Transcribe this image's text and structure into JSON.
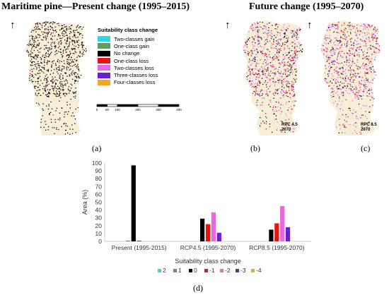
{
  "titles": {
    "present": "Maritime pine—Present change (1995–2015)",
    "future": "Future change (1995–2070)"
  },
  "panels": {
    "a": "(a)",
    "b": "(b)",
    "c": "(c)",
    "d": "(d)"
  },
  "north_arrow": "↑",
  "legend": {
    "title": "Suitability class change",
    "items": [
      {
        "label": "Two-classes gain",
        "color": "#33d6e6"
      },
      {
        "label": "One-class gain",
        "color": "#5aa05a"
      },
      {
        "label": "No change",
        "color": "#000000"
      },
      {
        "label": "One-class loss",
        "color": "#ee1111"
      },
      {
        "label": "Two-classes loss",
        "color": "#ee66dd"
      },
      {
        "label": "Three-classes loss",
        "color": "#6a1fd4"
      },
      {
        "label": "Four-classes loss",
        "color": "#f5a623"
      }
    ]
  },
  "scale_bar": {
    "ticks": [
      "0",
      "50",
      "100",
      "200",
      "300",
      "400"
    ]
  },
  "map_notes": {
    "b": {
      "line1": "RPC 4.5",
      "line2": "2070"
    },
    "c": {
      "line1": "RPC 8.5",
      "line2": "2070"
    }
  },
  "colors": {
    "land": "#f7eed8"
  },
  "chart_data": {
    "type": "bar",
    "categories": [
      "Present (1995-2015)",
      "RCP4.5 (1995-2070)",
      "RCP8.5 (1995-2070)"
    ],
    "series": [
      {
        "name": "2",
        "color": "#33d6e6",
        "values": [
          0,
          0,
          0
        ]
      },
      {
        "name": "1",
        "color": "#5aa05a",
        "values": [
          1,
          0,
          0
        ]
      },
      {
        "name": "0",
        "color": "#000000",
        "values": [
          97,
          29,
          15
        ]
      },
      {
        "name": "-1",
        "color": "#ee1111",
        "values": [
          1,
          22,
          23
        ]
      },
      {
        "name": "-2",
        "color": "#ee66dd",
        "values": [
          0,
          37,
          45
        ]
      },
      {
        "name": "-3",
        "color": "#6a1fd4",
        "values": [
          0,
          11,
          18
        ]
      },
      {
        "name": "-4",
        "color": "#f5a623",
        "values": [
          0,
          0,
          0
        ]
      }
    ],
    "ylabel": "Area (%)",
    "xlabel": "Suitability class change",
    "ylim": [
      0,
      100
    ],
    "yticks": [
      0,
      10,
      20,
      30,
      40,
      50,
      60,
      70,
      80,
      90,
      100
    ],
    "grid": false,
    "legend_position": "bottom"
  }
}
